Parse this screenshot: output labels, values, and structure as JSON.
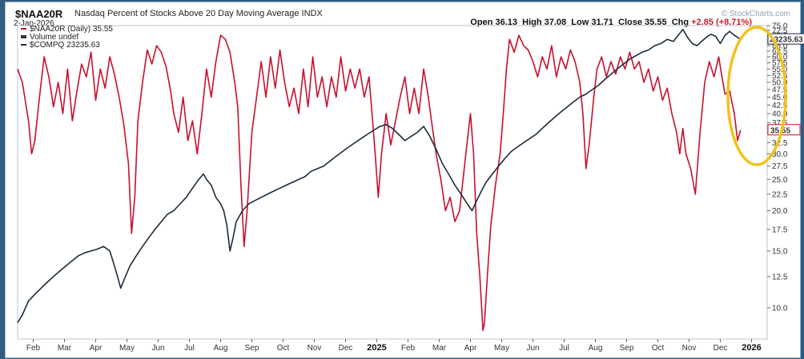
{
  "header": {
    "symbol": "$NAA20R",
    "description": "Nasdaq Percent of Stocks Above 20 Day Moving Average",
    "exchange": "INDX",
    "date": "2-Jan-2026",
    "watermark": "© StockCharts.com",
    "open_label": "Open",
    "open": "36.13",
    "high_label": "High",
    "high": "37.08",
    "low_label": "Low",
    "low": "31.71",
    "close_label": "Close",
    "close": "35.55",
    "chg_label": "Chg",
    "chg": "+2.85 (+8.71%)"
  },
  "legend": {
    "items": [
      {
        "text": "$NAA20R (Daily) 35.55",
        "color": "#c8102e"
      },
      {
        "text": "Volume undef",
        "color": "#333333"
      },
      {
        "text": "$COMPQ 23235.63",
        "color": "#1d2b3a"
      }
    ]
  },
  "colors": {
    "naa20r": "#c8102e",
    "compq": "#1d2b3a",
    "highlight_circle": "#f2c21a",
    "background": "#2f5d82"
  },
  "chart_data": {
    "type": "line",
    "x_ticks": [
      "Feb",
      "Mar",
      "Apr",
      "May",
      "Jun",
      "Jul",
      "Aug",
      "Sep",
      "Oct",
      "Nov",
      "Dec",
      "2025",
      "Feb",
      "Mar",
      "Apr",
      "May",
      "Jun",
      "Jul",
      "Aug",
      "Sep",
      "Oct",
      "Nov",
      "Dec",
      "2026"
    ],
    "y_ticks": [
      "10.0",
      "12.5",
      "15.0",
      "17.5",
      "20.0",
      "22.5",
      "25.0",
      "27.5",
      "30.0",
      "32.5",
      "35.0",
      "37.5",
      "40.0",
      "42.5",
      "45.0",
      "47.5",
      "50.0",
      "52.5",
      "55.0",
      "57.5",
      "60.0",
      "62.5",
      "65.0",
      "67.5",
      "70.0",
      "72.5",
      "75.0"
    ],
    "ylim": [
      8,
      75
    ],
    "x_range_months": [
      0,
      24
    ],
    "y_scale": "log",
    "last_value_labels": {
      "naa20r": "35.55",
      "compq": "23235.63"
    },
    "highlight": {
      "shape": "ellipse",
      "around": "last ~1.5 months",
      "color": "#f2c21a"
    },
    "series": [
      {
        "name": "$NAA20R (Daily)",
        "color": "#c8102e",
        "points": [
          [
            0.0,
            55.0
          ],
          [
            0.15,
            50.0
          ],
          [
            0.35,
            38.0
          ],
          [
            0.45,
            30.0
          ],
          [
            0.55,
            33.0
          ],
          [
            0.7,
            45.0
          ],
          [
            0.85,
            60.0
          ],
          [
            1.0,
            52.0
          ],
          [
            1.15,
            42.0
          ],
          [
            1.3,
            50.0
          ],
          [
            1.45,
            40.0
          ],
          [
            1.6,
            55.0
          ],
          [
            1.75,
            38.0
          ],
          [
            1.9,
            47.0
          ],
          [
            2.05,
            57.0
          ],
          [
            2.2,
            52.0
          ],
          [
            2.35,
            62.0
          ],
          [
            2.5,
            44.0
          ],
          [
            2.65,
            55.0
          ],
          [
            2.8,
            48.0
          ],
          [
            2.95,
            60.0
          ],
          [
            3.1,
            53.0
          ],
          [
            3.25,
            45.0
          ],
          [
            3.4,
            37.0
          ],
          [
            3.55,
            28.0
          ],
          [
            3.65,
            17.0
          ],
          [
            3.75,
            22.0
          ],
          [
            3.85,
            38.0
          ],
          [
            4.0,
            50.0
          ],
          [
            4.15,
            63.0
          ],
          [
            4.3,
            57.0
          ],
          [
            4.45,
            65.0
          ],
          [
            4.6,
            62.0
          ],
          [
            4.75,
            56.0
          ],
          [
            4.9,
            47.0
          ],
          [
            5.0,
            40.0
          ],
          [
            5.15,
            35.0
          ],
          [
            5.3,
            45.0
          ],
          [
            5.45,
            33.0
          ],
          [
            5.6,
            38.0
          ],
          [
            5.75,
            30.0
          ],
          [
            5.9,
            40.0
          ],
          [
            6.05,
            55.0
          ],
          [
            6.2,
            45.0
          ],
          [
            6.35,
            58.0
          ],
          [
            6.5,
            70.0
          ],
          [
            6.65,
            68.0
          ],
          [
            6.8,
            62.0
          ],
          [
            6.95,
            50.0
          ],
          [
            7.05,
            42.0
          ],
          [
            7.15,
            24.0
          ],
          [
            7.25,
            15.5
          ],
          [
            7.35,
            20.0
          ],
          [
            7.5,
            35.0
          ],
          [
            7.65,
            45.0
          ],
          [
            7.8,
            58.0
          ],
          [
            7.95,
            45.0
          ],
          [
            8.1,
            60.0
          ],
          [
            8.25,
            48.0
          ],
          [
            8.4,
            63.0
          ],
          [
            8.55,
            50.0
          ],
          [
            8.7,
            42.0
          ],
          [
            8.85,
            48.0
          ],
          [
            9.0,
            40.0
          ],
          [
            9.15,
            55.0
          ],
          [
            9.3,
            42.0
          ],
          [
            9.45,
            60.0
          ],
          [
            9.6,
            45.0
          ],
          [
            9.75,
            52.0
          ],
          [
            9.9,
            42.0
          ],
          [
            10.05,
            52.0
          ],
          [
            10.2,
            45.0
          ],
          [
            10.35,
            60.0
          ],
          [
            10.5,
            47.0
          ],
          [
            10.65,
            55.0
          ],
          [
            10.8,
            48.0
          ],
          [
            10.95,
            55.0
          ],
          [
            11.1,
            45.0
          ],
          [
            11.25,
            52.0
          ],
          [
            11.35,
            40.0
          ],
          [
            11.45,
            30.0
          ],
          [
            11.55,
            22.0
          ],
          [
            11.65,
            30.0
          ],
          [
            11.8,
            40.0
          ],
          [
            11.95,
            32.0
          ],
          [
            12.1,
            38.0
          ],
          [
            12.25,
            45.0
          ],
          [
            12.4,
            52.0
          ],
          [
            12.55,
            40.0
          ],
          [
            12.7,
            48.0
          ],
          [
            12.85,
            40.0
          ],
          [
            13.0,
            55.0
          ],
          [
            13.15,
            45.0
          ],
          [
            13.25,
            38.0
          ],
          [
            13.4,
            30.0
          ],
          [
            13.55,
            25.0
          ],
          [
            13.7,
            20.0
          ],
          [
            13.85,
            22.0
          ],
          [
            14.0,
            18.5
          ],
          [
            14.15,
            20.0
          ],
          [
            14.3,
            27.0
          ],
          [
            14.4,
            33.0
          ],
          [
            14.5,
            40.0
          ],
          [
            14.6,
            30.0
          ],
          [
            14.7,
            17.0
          ],
          [
            14.8,
            12.5
          ],
          [
            14.9,
            8.5
          ],
          [
            14.95,
            9.0
          ],
          [
            15.05,
            13.0
          ],
          [
            15.15,
            18.0
          ],
          [
            15.3,
            24.0
          ],
          [
            15.45,
            30.0
          ],
          [
            15.55,
            40.0
          ],
          [
            15.65,
            55.0
          ],
          [
            15.75,
            68.0
          ],
          [
            15.9,
            62.0
          ],
          [
            16.05,
            70.0
          ],
          [
            16.2,
            65.0
          ],
          [
            16.35,
            63.0
          ],
          [
            16.5,
            58.0
          ],
          [
            16.65,
            52.0
          ],
          [
            16.8,
            60.0
          ],
          [
            16.95,
            55.0
          ],
          [
            17.1,
            65.0
          ],
          [
            17.25,
            52.0
          ],
          [
            17.4,
            60.0
          ],
          [
            17.55,
            55.0
          ],
          [
            17.7,
            63.0
          ],
          [
            17.85,
            58.0
          ],
          [
            18.0,
            50.0
          ],
          [
            18.1,
            40.0
          ],
          [
            18.2,
            27.0
          ],
          [
            18.3,
            32.0
          ],
          [
            18.45,
            45.0
          ],
          [
            18.55,
            55.0
          ],
          [
            18.7,
            60.0
          ],
          [
            18.85,
            52.0
          ],
          [
            19.0,
            58.0
          ],
          [
            19.15,
            53.0
          ],
          [
            19.3,
            60.0
          ],
          [
            19.45,
            55.0
          ],
          [
            19.6,
            62.0
          ],
          [
            19.75,
            55.0
          ],
          [
            19.9,
            58.0
          ],
          [
            20.05,
            50.0
          ],
          [
            20.2,
            55.0
          ],
          [
            20.35,
            47.0
          ],
          [
            20.5,
            52.0
          ],
          [
            20.65,
            44.0
          ],
          [
            20.8,
            48.0
          ],
          [
            20.95,
            40.0
          ],
          [
            21.1,
            35.0
          ],
          [
            21.2,
            30.0
          ],
          [
            21.3,
            36.0
          ],
          [
            21.4,
            30.0
          ],
          [
            21.55,
            27.0
          ],
          [
            21.7,
            22.5
          ],
          [
            21.85,
            35.0
          ],
          [
            22.0,
            50.0
          ],
          [
            22.15,
            58.0
          ],
          [
            22.3,
            52.0
          ],
          [
            22.45,
            60.0
          ],
          [
            22.55,
            52.0
          ],
          [
            22.65,
            46.0
          ],
          [
            22.8,
            47.0
          ],
          [
            22.95,
            40.0
          ],
          [
            23.05,
            33.0
          ],
          [
            23.15,
            35.55
          ]
        ]
      },
      {
        "name": "$COMPQ",
        "color": "#1d2b3a",
        "points": [
          [
            0.0,
            9.0
          ],
          [
            0.15,
            9.5
          ],
          [
            0.35,
            10.5
          ],
          [
            0.55,
            11.0
          ],
          [
            0.75,
            11.5
          ],
          [
            0.95,
            12.0
          ],
          [
            1.15,
            12.5
          ],
          [
            1.35,
            13.0
          ],
          [
            1.55,
            13.5
          ],
          [
            1.75,
            14.0
          ],
          [
            1.95,
            14.5
          ],
          [
            2.15,
            14.8
          ],
          [
            2.35,
            15.0
          ],
          [
            2.55,
            15.2
          ],
          [
            2.75,
            15.5
          ],
          [
            2.95,
            15.0
          ],
          [
            3.05,
            14.0
          ],
          [
            3.2,
            12.5
          ],
          [
            3.3,
            11.5
          ],
          [
            3.45,
            12.5
          ],
          [
            3.6,
            13.5
          ],
          [
            3.8,
            14.5
          ],
          [
            4.0,
            15.5
          ],
          [
            4.2,
            16.5
          ],
          [
            4.4,
            17.5
          ],
          [
            4.6,
            18.5
          ],
          [
            4.8,
            19.5
          ],
          [
            5.0,
            20.0
          ],
          [
            5.2,
            21.0
          ],
          [
            5.4,
            22.0
          ],
          [
            5.6,
            23.5
          ],
          [
            5.8,
            25.0
          ],
          [
            5.95,
            26.0
          ],
          [
            6.05,
            25.0
          ],
          [
            6.2,
            24.0
          ],
          [
            6.35,
            22.0
          ],
          [
            6.5,
            21.0
          ],
          [
            6.6,
            20.0
          ],
          [
            6.7,
            18.0
          ],
          [
            6.8,
            15.0
          ],
          [
            6.9,
            16.5
          ],
          [
            7.0,
            18.5
          ],
          [
            7.2,
            20.0
          ],
          [
            7.4,
            21.0
          ],
          [
            7.6,
            21.5
          ],
          [
            7.8,
            22.0
          ],
          [
            8.0,
            22.5
          ],
          [
            8.2,
            23.0
          ],
          [
            8.4,
            23.5
          ],
          [
            8.6,
            24.0
          ],
          [
            8.8,
            24.5
          ],
          [
            9.0,
            25.0
          ],
          [
            9.2,
            25.5
          ],
          [
            9.4,
            26.5
          ],
          [
            9.6,
            27.0
          ],
          [
            9.8,
            27.5
          ],
          [
            10.0,
            28.5
          ],
          [
            10.2,
            29.5
          ],
          [
            10.4,
            30.5
          ],
          [
            10.6,
            31.5
          ],
          [
            10.8,
            32.5
          ],
          [
            11.0,
            33.5
          ],
          [
            11.2,
            34.5
          ],
          [
            11.4,
            35.5
          ],
          [
            11.6,
            36.5
          ],
          [
            11.8,
            37.0
          ],
          [
            12.0,
            36.0
          ],
          [
            12.2,
            34.5
          ],
          [
            12.4,
            33.0
          ],
          [
            12.6,
            34.0
          ],
          [
            12.8,
            35.0
          ],
          [
            13.0,
            36.5
          ],
          [
            13.2,
            34.0
          ],
          [
            13.4,
            31.0
          ],
          [
            13.6,
            28.0
          ],
          [
            13.8,
            26.0
          ],
          [
            14.0,
            24.0
          ],
          [
            14.2,
            22.5
          ],
          [
            14.4,
            21.0
          ],
          [
            14.55,
            20.0
          ],
          [
            14.7,
            21.5
          ],
          [
            14.85,
            23.0
          ],
          [
            15.0,
            24.5
          ],
          [
            15.2,
            26.0
          ],
          [
            15.4,
            27.5
          ],
          [
            15.6,
            29.0
          ],
          [
            15.8,
            30.5
          ],
          [
            16.0,
            31.5
          ],
          [
            16.2,
            32.5
          ],
          [
            16.4,
            33.5
          ],
          [
            16.6,
            34.5
          ],
          [
            16.8,
            36.0
          ],
          [
            17.0,
            37.5
          ],
          [
            17.2,
            39.0
          ],
          [
            17.4,
            40.5
          ],
          [
            17.6,
            42.0
          ],
          [
            17.8,
            43.5
          ],
          [
            18.0,
            45.0
          ],
          [
            18.2,
            46.0
          ],
          [
            18.4,
            47.5
          ],
          [
            18.6,
            49.0
          ],
          [
            18.8,
            51.0
          ],
          [
            19.0,
            53.0
          ],
          [
            19.2,
            55.0
          ],
          [
            19.4,
            57.0
          ],
          [
            19.6,
            59.0
          ],
          [
            19.8,
            60.5
          ],
          [
            20.0,
            62.0
          ],
          [
            20.2,
            63.0
          ],
          [
            20.4,
            65.0
          ],
          [
            20.6,
            66.0
          ],
          [
            20.8,
            68.0
          ],
          [
            21.0,
            67.0
          ],
          [
            21.15,
            70.0
          ],
          [
            21.3,
            73.0
          ],
          [
            21.45,
            69.0
          ],
          [
            21.6,
            66.0
          ],
          [
            21.75,
            65.0
          ],
          [
            21.9,
            67.0
          ],
          [
            22.05,
            69.0
          ],
          [
            22.2,
            70.5
          ],
          [
            22.35,
            69.5
          ],
          [
            22.5,
            66.0
          ],
          [
            22.65,
            70.0
          ],
          [
            22.8,
            72.0
          ],
          [
            22.95,
            70.0
          ],
          [
            23.1,
            68.5
          ],
          [
            23.15,
            68.0
          ]
        ]
      }
    ]
  }
}
